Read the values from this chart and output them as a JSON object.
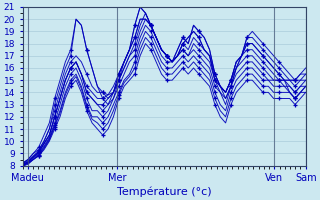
{
  "xlabel": "Température (°c)",
  "xlim": [
    0,
    108
  ],
  "ylim": [
    8,
    21
  ],
  "yticks": [
    8,
    9,
    10,
    11,
    12,
    13,
    14,
    15,
    16,
    17,
    18,
    19,
    20,
    21
  ],
  "xtick_positions": [
    2,
    36,
    66,
    96,
    108
  ],
  "xtick_labels": [
    "Madeu",
    "Mer",
    "",
    "Ven",
    "Sam"
  ],
  "line_color": "#0000bb",
  "bg_color": "#cce8f0",
  "grid_major_color": "#aaccdb",
  "grid_minor_color": "#bbdde8",
  "series": [
    [
      8.2,
      8.5,
      9.0,
      9.5,
      10.5,
      11.5,
      13.5,
      15.0,
      16.5,
      17.5,
      20.0,
      19.5,
      17.5,
      16.0,
      14.5,
      14.0,
      13.5,
      14.0,
      15.5,
      16.5,
      17.5,
      19.5,
      21.0,
      20.5,
      19.5,
      18.5,
      17.5,
      17.0,
      16.5,
      17.5,
      18.5,
      18.0,
      19.5,
      19.0,
      18.5,
      17.5,
      15.5,
      14.5,
      14.0,
      15.0,
      16.5,
      17.0,
      18.5,
      19.0,
      18.5,
      18.0,
      17.5,
      17.0,
      16.5,
      16.0,
      15.5,
      15.0,
      15.5,
      16.0
    ],
    [
      8.2,
      8.5,
      9.0,
      9.3,
      10.0,
      11.0,
      13.0,
      14.5,
      16.0,
      17.0,
      20.0,
      19.5,
      17.5,
      16.0,
      14.5,
      13.5,
      13.0,
      13.5,
      15.0,
      16.5,
      17.5,
      19.5,
      21.0,
      20.5,
      19.5,
      18.5,
      17.5,
      17.0,
      16.5,
      17.5,
      18.5,
      18.0,
      19.5,
      19.0,
      18.5,
      17.5,
      15.5,
      14.5,
      14.0,
      15.0,
      16.5,
      17.0,
      18.5,
      18.5,
      18.0,
      17.5,
      17.0,
      16.5,
      16.0,
      15.5,
      15.0,
      14.5,
      15.0,
      15.5
    ],
    [
      8.2,
      8.4,
      8.8,
      9.2,
      10.0,
      11.0,
      12.5,
      14.0,
      15.5,
      16.5,
      17.0,
      16.5,
      15.5,
      14.5,
      14.0,
      14.0,
      13.8,
      14.0,
      15.5,
      16.5,
      17.5,
      18.5,
      20.0,
      20.0,
      19.5,
      18.5,
      17.5,
      17.0,
      16.5,
      17.0,
      18.0,
      18.5,
      19.0,
      18.5,
      17.5,
      17.0,
      15.5,
      14.5,
      13.5,
      14.5,
      16.0,
      17.0,
      18.0,
      18.0,
      17.5,
      17.0,
      16.5,
      16.0,
      15.5,
      15.0,
      14.5,
      14.0,
      14.5,
      15.0
    ],
    [
      8.1,
      8.3,
      8.7,
      9.1,
      9.8,
      10.5,
      12.0,
      13.5,
      15.0,
      16.0,
      16.5,
      15.5,
      14.5,
      14.0,
      13.5,
      13.5,
      13.8,
      14.5,
      15.5,
      16.5,
      17.5,
      18.5,
      20.0,
      20.0,
      19.5,
      18.5,
      17.5,
      17.0,
      16.5,
      17.0,
      18.0,
      18.5,
      19.0,
      18.5,
      17.5,
      17.0,
      15.0,
      14.0,
      13.0,
      14.5,
      16.0,
      17.0,
      18.0,
      18.0,
      17.5,
      17.0,
      16.5,
      16.0,
      15.5,
      15.0,
      14.0,
      13.5,
      14.0,
      14.5
    ],
    [
      8.1,
      8.3,
      8.7,
      9.1,
      9.8,
      10.5,
      12.0,
      13.5,
      15.0,
      16.0,
      16.5,
      15.5,
      14.0,
      13.5,
      13.0,
      13.0,
      13.5,
      14.0,
      15.0,
      16.0,
      17.0,
      18.0,
      19.5,
      20.5,
      19.5,
      18.5,
      17.5,
      17.0,
      16.5,
      17.0,
      18.0,
      17.5,
      18.5,
      18.0,
      17.5,
      17.0,
      15.0,
      14.5,
      14.0,
      15.0,
      16.5,
      17.0,
      17.5,
      17.5,
      17.0,
      16.5,
      16.0,
      15.5,
      15.0,
      14.5,
      14.0,
      13.5,
      14.0,
      14.5
    ],
    [
      8.1,
      8.3,
      8.7,
      9.1,
      9.8,
      10.5,
      12.0,
      13.5,
      15.0,
      16.0,
      16.5,
      15.5,
      14.0,
      13.5,
      13.0,
      12.5,
      13.0,
      14.0,
      15.0,
      16.0,
      17.0,
      17.5,
      19.0,
      20.0,
      19.5,
      18.5,
      17.5,
      17.0,
      16.5,
      17.0,
      17.5,
      17.0,
      18.0,
      17.5,
      17.0,
      16.5,
      15.0,
      14.5,
      14.0,
      15.0,
      16.0,
      16.5,
      17.0,
      17.0,
      16.5,
      16.0,
      15.5,
      15.0,
      15.0,
      15.0,
      15.0,
      15.0,
      15.0,
      15.0
    ],
    [
      8.1,
      8.2,
      8.6,
      9.0,
      9.6,
      10.3,
      11.5,
      13.0,
      14.5,
      15.5,
      16.0,
      15.0,
      13.5,
      12.5,
      12.5,
      12.0,
      12.5,
      13.5,
      14.5,
      15.5,
      16.5,
      17.0,
      18.5,
      19.5,
      19.0,
      18.0,
      17.0,
      16.5,
      16.5,
      17.0,
      17.5,
      17.0,
      17.5,
      17.0,
      16.5,
      16.0,
      14.5,
      14.0,
      13.5,
      14.5,
      15.5,
      16.0,
      16.5,
      16.5,
      16.0,
      15.5,
      15.0,
      15.0,
      15.0,
      15.0,
      15.0,
      15.0,
      15.5,
      15.5
    ],
    [
      8.0,
      8.2,
      8.5,
      8.9,
      9.5,
      10.2,
      11.3,
      12.5,
      14.0,
      15.0,
      15.5,
      14.5,
      13.0,
      12.0,
      12.0,
      11.5,
      12.0,
      13.0,
      14.0,
      15.0,
      15.5,
      16.5,
      18.0,
      19.0,
      18.5,
      17.5,
      16.5,
      16.0,
      16.0,
      16.5,
      17.0,
      16.5,
      17.0,
      16.5,
      16.0,
      15.5,
      14.0,
      13.0,
      12.5,
      14.0,
      15.0,
      15.5,
      16.0,
      16.0,
      15.5,
      15.0,
      15.0,
      14.5,
      14.5,
      14.5,
      14.5,
      14.0,
      14.5,
      14.5
    ],
    [
      8.0,
      8.2,
      8.5,
      8.8,
      9.4,
      10.1,
      11.2,
      12.3,
      13.8,
      14.8,
      15.3,
      14.3,
      12.8,
      11.8,
      11.5,
      11.0,
      11.5,
      12.5,
      13.8,
      14.8,
      15.3,
      16.0,
      17.5,
      18.5,
      18.0,
      17.0,
      16.0,
      15.5,
      15.5,
      16.0,
      16.5,
      16.0,
      16.5,
      16.0,
      15.5,
      15.0,
      13.5,
      12.5,
      12.0,
      13.5,
      14.5,
      15.0,
      15.5,
      15.5,
      15.0,
      14.5,
      14.5,
      14.0,
      14.0,
      14.0,
      14.0,
      13.5,
      14.0,
      14.0
    ],
    [
      8.0,
      8.1,
      8.5,
      8.8,
      9.3,
      10.0,
      11.0,
      12.0,
      13.5,
      14.5,
      15.0,
      14.0,
      12.5,
      11.5,
      11.0,
      10.5,
      11.0,
      12.0,
      13.5,
      14.5,
      15.0,
      15.5,
      17.0,
      18.0,
      17.5,
      16.5,
      15.5,
      15.0,
      15.0,
      15.5,
      16.0,
      15.5,
      16.0,
      15.5,
      15.0,
      14.5,
      13.0,
      12.0,
      11.5,
      13.0,
      14.0,
      14.5,
      15.0,
      15.0,
      14.5,
      14.0,
      14.0,
      13.5,
      13.5,
      13.5,
      13.5,
      13.0,
      13.5,
      14.0
    ]
  ]
}
